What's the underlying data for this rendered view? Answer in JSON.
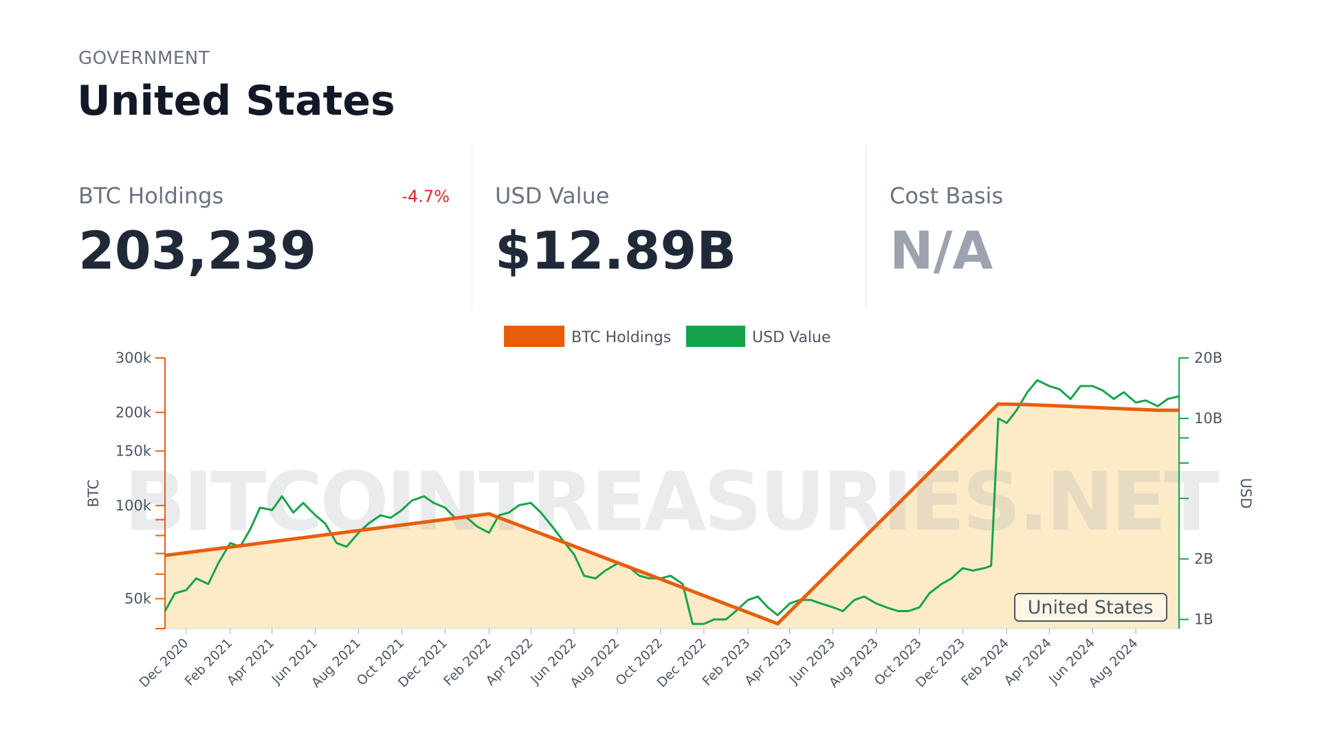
{
  "header": {
    "overline": "GOVERNMENT",
    "title": "United States"
  },
  "stats": {
    "btc": {
      "label": "BTC Holdings",
      "value": "203,239",
      "change": "-4.7%"
    },
    "usd": {
      "label": "USD Value",
      "value": "$12.89B"
    },
    "cost": {
      "label": "Cost Basis",
      "value": "N/A"
    }
  },
  "colors": {
    "btc_line": "#e85d0c",
    "btc_fill": "#fdebc8",
    "usd_line": "#16a34a",
    "change_negative": "#dc2626"
  },
  "chart_data": {
    "type": "line",
    "watermark": "BITCOINTREASURIES.NET",
    "badge": "United States",
    "legend": {
      "placement": "top-center",
      "entries": [
        "BTC Holdings",
        "USD Value"
      ]
    },
    "x_ticks": [
      "Dec 2020",
      "Feb 2021",
      "Apr 2021",
      "Jun 2021",
      "Aug 2021",
      "Oct 2021",
      "Dec 2021",
      "Feb 2022",
      "Apr 2022",
      "Jun 2022",
      "Aug 2022",
      "Oct 2022",
      "Dec 2022",
      "Feb 2023",
      "Apr 2023",
      "Jun 2023",
      "Aug 2023",
      "Oct 2023",
      "Dec 2023",
      "Feb 2024",
      "Apr 2024",
      "Jun 2024",
      "Aug 2024"
    ],
    "xlim": [
      "2020-11-01",
      "2024-10-01"
    ],
    "y_left": {
      "label": "BTC",
      "scale": "log",
      "range": [
        40000,
        300000
      ],
      "labeled_ticks": [
        {
          "v": 300000,
          "t": "300k"
        },
        {
          "v": 200000,
          "t": "200k"
        },
        {
          "v": 150000,
          "t": "150k"
        },
        {
          "v": 100000,
          "t": "100k"
        },
        {
          "v": 50000,
          "t": "50k"
        }
      ],
      "minor_ticks": [
        90000,
        80000,
        70000,
        60000,
        40000
      ]
    },
    "y_right": {
      "label": "USD",
      "scale": "log",
      "range": [
        900000000,
        20000000000
      ],
      "labeled_ticks": [
        {
          "v": 20000000000,
          "t": "20B"
        },
        {
          "v": 10000000000,
          "t": "10B"
        },
        {
          "v": 2000000000,
          "t": "2B"
        },
        {
          "v": 1000000000,
          "t": "1B"
        }
      ],
      "minor_ticks": [
        8000000000,
        6000000000,
        4000000000
      ]
    },
    "series": [
      {
        "name": "BTC Holdings",
        "axis": "left",
        "points": [
          [
            "2020-11-01",
            69000
          ],
          [
            "2022-02-01",
            94000
          ],
          [
            "2023-03-15",
            41500
          ],
          [
            "2024-01-20",
            213000
          ],
          [
            "2024-03-01",
            212000
          ],
          [
            "2024-09-01",
            203239
          ],
          [
            "2024-10-01",
            203239
          ]
        ]
      },
      {
        "name": "USD Value",
        "axis": "right",
        "points": [
          [
            "2020-11-01",
            1100000000
          ],
          [
            "2020-11-15",
            1350000000
          ],
          [
            "2020-12-01",
            1400000000
          ],
          [
            "2020-12-15",
            1600000000
          ],
          [
            "2021-01-01",
            1500000000
          ],
          [
            "2021-01-15",
            1900000000
          ],
          [
            "2021-02-01",
            2400000000
          ],
          [
            "2021-02-15",
            2300000000
          ],
          [
            "2021-03-01",
            2800000000
          ],
          [
            "2021-03-15",
            3600000000
          ],
          [
            "2021-04-01",
            3500000000
          ],
          [
            "2021-04-15",
            4100000000
          ],
          [
            "2021-05-01",
            3400000000
          ],
          [
            "2021-05-15",
            3800000000
          ],
          [
            "2021-06-01",
            3300000000
          ],
          [
            "2021-06-15",
            3000000000
          ],
          [
            "2021-07-01",
            2400000000
          ],
          [
            "2021-07-15",
            2300000000
          ],
          [
            "2021-08-01",
            2700000000
          ],
          [
            "2021-08-15",
            3000000000
          ],
          [
            "2021-09-01",
            3300000000
          ],
          [
            "2021-09-15",
            3200000000
          ],
          [
            "2021-10-01",
            3500000000
          ],
          [
            "2021-10-15",
            3900000000
          ],
          [
            "2021-11-01",
            4100000000
          ],
          [
            "2021-11-15",
            3800000000
          ],
          [
            "2021-12-01",
            3600000000
          ],
          [
            "2021-12-15",
            3200000000
          ],
          [
            "2022-01-01",
            3200000000
          ],
          [
            "2022-01-15",
            2900000000
          ],
          [
            "2022-02-01",
            2700000000
          ],
          [
            "2022-02-15",
            3300000000
          ],
          [
            "2022-03-01",
            3400000000
          ],
          [
            "2022-03-15",
            3700000000
          ],
          [
            "2022-04-01",
            3800000000
          ],
          [
            "2022-04-15",
            3400000000
          ],
          [
            "2022-05-01",
            2900000000
          ],
          [
            "2022-05-15",
            2500000000
          ],
          [
            "2022-06-01",
            2100000000
          ],
          [
            "2022-06-15",
            1650000000
          ],
          [
            "2022-07-01",
            1600000000
          ],
          [
            "2022-07-15",
            1750000000
          ],
          [
            "2022-08-01",
            1900000000
          ],
          [
            "2022-08-15",
            1850000000
          ],
          [
            "2022-09-01",
            1650000000
          ],
          [
            "2022-09-15",
            1600000000
          ],
          [
            "2022-10-01",
            1600000000
          ],
          [
            "2022-10-15",
            1650000000
          ],
          [
            "2022-11-01",
            1500000000
          ],
          [
            "2022-11-15",
            950000000
          ],
          [
            "2022-12-01",
            950000000
          ],
          [
            "2022-12-15",
            1000000000
          ],
          [
            "2023-01-01",
            1000000000
          ],
          [
            "2023-01-15",
            1100000000
          ],
          [
            "2023-02-01",
            1250000000
          ],
          [
            "2023-02-15",
            1300000000
          ],
          [
            "2023-03-01",
            1150000000
          ],
          [
            "2023-03-15",
            1050000000
          ],
          [
            "2023-04-01",
            1200000000
          ],
          [
            "2023-04-15",
            1250000000
          ],
          [
            "2023-05-01",
            1250000000
          ],
          [
            "2023-05-15",
            1200000000
          ],
          [
            "2023-06-01",
            1150000000
          ],
          [
            "2023-06-15",
            1100000000
          ],
          [
            "2023-07-01",
            1250000000
          ],
          [
            "2023-07-15",
            1300000000
          ],
          [
            "2023-08-01",
            1200000000
          ],
          [
            "2023-08-15",
            1150000000
          ],
          [
            "2023-09-01",
            1100000000
          ],
          [
            "2023-09-15",
            1100000000
          ],
          [
            "2023-10-01",
            1150000000
          ],
          [
            "2023-10-15",
            1350000000
          ],
          [
            "2023-11-01",
            1500000000
          ],
          [
            "2023-11-15",
            1600000000
          ],
          [
            "2023-12-01",
            1800000000
          ],
          [
            "2023-12-15",
            1750000000
          ],
          [
            "2024-01-01",
            1800000000
          ],
          [
            "2024-01-10",
            1850000000
          ],
          [
            "2024-01-20",
            10000000000
          ],
          [
            "2024-02-01",
            9500000000
          ],
          [
            "2024-02-15",
            11000000000
          ],
          [
            "2024-03-01",
            13500000000
          ],
          [
            "2024-03-15",
            15500000000
          ],
          [
            "2024-04-01",
            14500000000
          ],
          [
            "2024-04-15",
            14000000000
          ],
          [
            "2024-05-01",
            12500000000
          ],
          [
            "2024-05-15",
            14500000000
          ],
          [
            "2024-06-01",
            14500000000
          ],
          [
            "2024-06-15",
            13800000000
          ],
          [
            "2024-07-01",
            12500000000
          ],
          [
            "2024-07-15",
            13500000000
          ],
          [
            "2024-08-01",
            12000000000
          ],
          [
            "2024-08-15",
            12300000000
          ],
          [
            "2024-09-01",
            11500000000
          ],
          [
            "2024-09-15",
            12500000000
          ],
          [
            "2024-10-01",
            12890000000
          ]
        ]
      }
    ]
  }
}
